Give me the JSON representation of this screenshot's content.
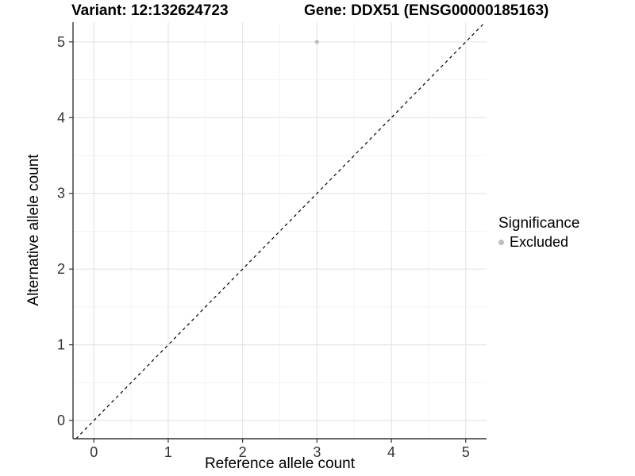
{
  "header": {
    "variant_title": "Variant: 12:132624723",
    "gene_title": "Gene: DDX51 (ENSG00000185163)"
  },
  "legend": {
    "title": "Significance",
    "position": "right",
    "entries": [
      {
        "label": "Excluded",
        "color": "#bdbdbd",
        "marker": "circle"
      }
    ]
  },
  "colors": {
    "point": "#bdbdbd",
    "axis_line": "#333333",
    "tick_label": "#333333",
    "grid_major": "#e5e5e5",
    "grid_minor": "#f2f2f2",
    "identity_line": "#000000",
    "background": "#ffffff"
  },
  "chart_data": {
    "type": "scatter",
    "title": "Variant: 12:132624723 / Gene: DDX51 (ENSG00000185163)",
    "xlabel": "Reference allele count",
    "ylabel": "Alternative allele count",
    "xlim": [
      -0.28,
      5.28
    ],
    "ylim": [
      -0.24,
      5.26
    ],
    "x_ticks": [
      0,
      1,
      2,
      3,
      4,
      5
    ],
    "y_ticks": [
      0,
      1,
      2,
      3,
      4,
      5
    ],
    "x_minor_ticks": [
      0.5,
      1.5,
      2.5,
      3.5,
      4.5
    ],
    "y_minor_ticks": [
      0.5,
      1.5,
      2.5,
      3.5,
      4.5
    ],
    "grid": true,
    "legend_position": "right",
    "identity_line": {
      "slope": 1,
      "intercept": 0,
      "style": "dashed"
    },
    "series": [
      {
        "name": "Excluded",
        "color": "#bdbdbd",
        "points": [
          {
            "x": 3,
            "y": 5
          }
        ]
      }
    ]
  }
}
